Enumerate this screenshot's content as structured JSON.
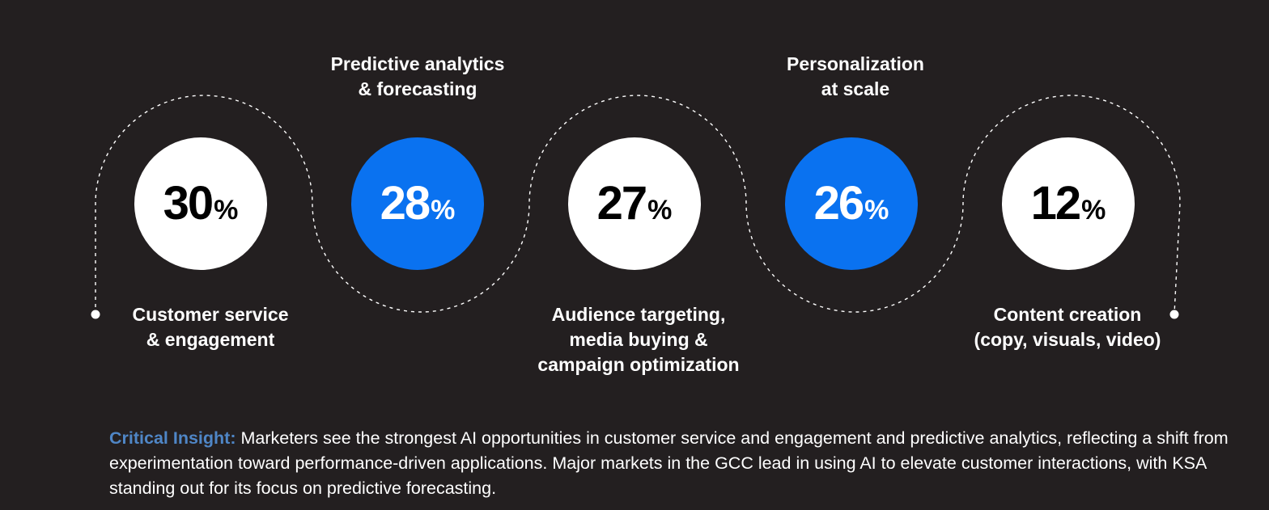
{
  "items": [
    {
      "value": "30",
      "unit": "%",
      "lines": [
        "Customer service",
        "& engagement"
      ],
      "style": "white"
    },
    {
      "value": "28",
      "unit": "%",
      "lines": [
        "Predictive analytics",
        "& forecasting"
      ],
      "style": "blue"
    },
    {
      "value": "27",
      "unit": "%",
      "lines": [
        "Audience targeting,",
        "media buying &",
        "campaign optimization"
      ],
      "style": "white"
    },
    {
      "value": "26",
      "unit": "%",
      "lines": [
        "Personalization",
        "at scale"
      ],
      "style": "blue"
    },
    {
      "value": "12",
      "unit": "%",
      "lines": [
        "Content creation",
        "(copy, visuals, video)"
      ],
      "style": "white"
    }
  ],
  "insight": {
    "lead": "Critical Insight:",
    "text": " Marketers see the strongest AI opportunities in customer service and engagement and predictive analytics, reflecting a shift from experimentation toward performance-driven applications. Major markets in the GCC lead in using AI to elevate customer interactions, with KSA standing out for its focus on predictive forecasting."
  },
  "colors": {
    "background": "#231f20",
    "blue": "#0a72f0",
    "white": "#ffffff",
    "insight_lead": "#4f86c6"
  }
}
